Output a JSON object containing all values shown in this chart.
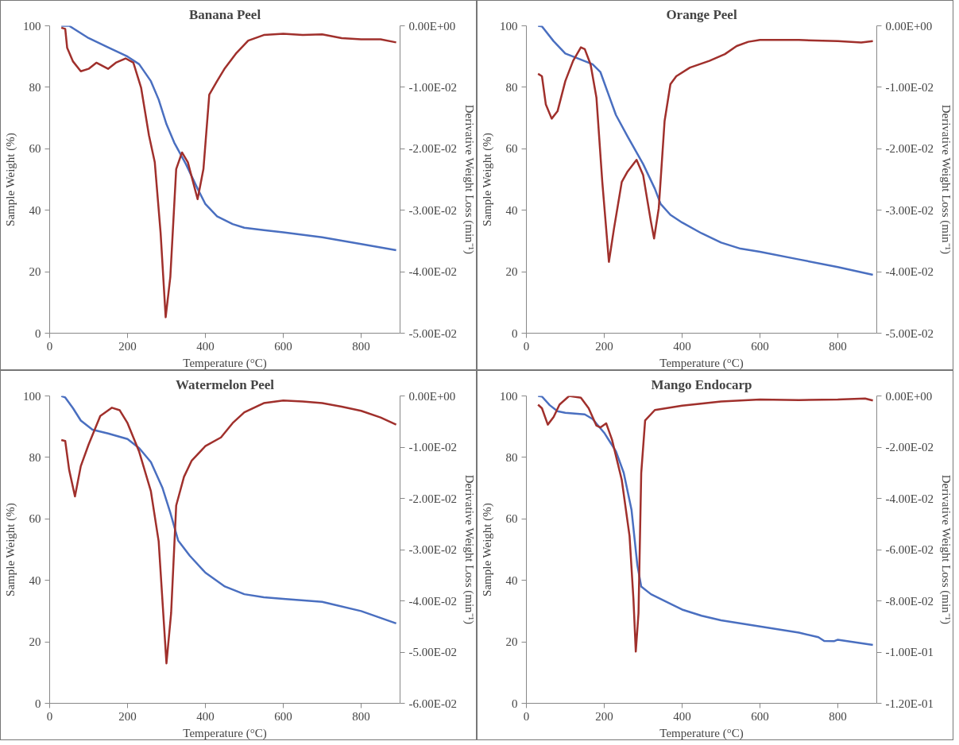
{
  "chart_data": [
    {
      "type": "line",
      "title": "Banana Peel",
      "xlabel": "Temperature (°C)",
      "ylabel": "Sample Weight (%)",
      "y2label": "Derivative Weight Loss (min⁻¹)",
      "xlim": [
        0,
        900
      ],
      "xticks": [
        0,
        200,
        400,
        600,
        800
      ],
      "ylim": [
        0,
        100
      ],
      "yticks": [
        0,
        20,
        40,
        60,
        80,
        100
      ],
      "y2lim": [
        -0.05,
        0
      ],
      "y2ticks": [
        {
          "value": 0,
          "label": "0.00E+00"
        },
        {
          "value": -0.01,
          "label": "-1.00E-02"
        },
        {
          "value": -0.02,
          "label": "-2.00E-02"
        },
        {
          "value": -0.03,
          "label": "-3.00E-02"
        },
        {
          "value": -0.04,
          "label": "-4.00E-02"
        },
        {
          "value": -0.05,
          "label": "-5.00E-02"
        }
      ],
      "grid": false,
      "series": [
        {
          "color": "#4a6fc0",
          "x": [
            30,
            50,
            100,
            150,
            200,
            230,
            260,
            280,
            300,
            320,
            350,
            380,
            400,
            430,
            470,
            500,
            550,
            600,
            700,
            800,
            890
          ],
          "values": [
            100,
            100,
            96,
            93,
            90,
            87.5,
            82,
            76,
            68,
            62,
            55,
            47,
            42,
            38,
            35.5,
            34.3,
            33.5,
            32.8,
            31.2,
            29,
            27
          ]
        },
        {
          "color": "#a0302c",
          "axis": "y2",
          "x": [
            30,
            40,
            45,
            60,
            80,
            100,
            120,
            150,
            170,
            195,
            215,
            235,
            255,
            270,
            285,
            298,
            310,
            325,
            340,
            355,
            380,
            395,
            410,
            430,
            450,
            480,
            510,
            550,
            600,
            650,
            700,
            750,
            800,
            850,
            890
          ],
          "values": [
            -0.0003,
            -0.0005,
            -0.0036,
            -0.0058,
            -0.0074,
            -0.007,
            -0.006,
            -0.007,
            -0.006,
            -0.0053,
            -0.006,
            -0.0101,
            -0.0178,
            -0.0222,
            -0.0337,
            -0.0474,
            -0.0408,
            -0.0233,
            -0.0206,
            -0.0222,
            -0.0282,
            -0.0233,
            -0.0112,
            -0.009,
            -0.0069,
            -0.0044,
            -0.0024,
            -0.0015,
            -0.0013,
            -0.0015,
            -0.0014,
            -0.002,
            -0.0022,
            -0.0022,
            -0.0027
          ]
        }
      ]
    },
    {
      "type": "line",
      "title": "Orange Peel",
      "xlabel": "Temperature (°C)",
      "ylabel": "Sample Weight (%)",
      "y2label": "Derivative Weight Loss (min⁻¹)",
      "xlim": [
        0,
        900
      ],
      "xticks": [
        0,
        200,
        400,
        600,
        800
      ],
      "ylim": [
        0,
        100
      ],
      "yticks": [
        0,
        20,
        40,
        60,
        80,
        100
      ],
      "y2lim": [
        -0.05,
        0
      ],
      "y2ticks": [
        {
          "value": 0,
          "label": "0.00E+00"
        },
        {
          "value": -0.01,
          "label": "-1.00E-02"
        },
        {
          "value": -0.02,
          "label": "-2.00E-02"
        },
        {
          "value": -0.03,
          "label": "-3.00E-02"
        },
        {
          "value": -0.04,
          "label": "-4.00E-02"
        },
        {
          "value": -0.05,
          "label": "-5.00E-02"
        }
      ],
      "grid": false,
      "series": [
        {
          "color": "#4a6fc0",
          "x": [
            30,
            40,
            70,
            100,
            130,
            170,
            190,
            210,
            230,
            260,
            300,
            330,
            345,
            370,
            400,
            450,
            500,
            550,
            600,
            700,
            800,
            890
          ],
          "values": [
            100,
            99.8,
            95,
            91,
            89.5,
            87.5,
            85,
            78,
            71,
            64,
            55,
            47,
            42,
            38.5,
            36,
            32.5,
            29.5,
            27.5,
            26.5,
            24,
            21.5,
            19
          ]
        },
        {
          "color": "#a0302c",
          "axis": "y2",
          "x": [
            30,
            40,
            50,
            65,
            80,
            100,
            120,
            140,
            150,
            165,
            180,
            195,
            212,
            225,
            245,
            260,
            283,
            300,
            320,
            328,
            340,
            355,
            370,
            385,
            420,
            470,
            510,
            540,
            570,
            600,
            700,
            800,
            860,
            890
          ],
          "values": [
            -0.0078,
            -0.0082,
            -0.0128,
            -0.0151,
            -0.0139,
            -0.009,
            -0.0057,
            -0.0035,
            -0.0038,
            -0.0063,
            -0.0117,
            -0.0254,
            -0.0384,
            -0.033,
            -0.0254,
            -0.0237,
            -0.0218,
            -0.0243,
            -0.0319,
            -0.0346,
            -0.0297,
            -0.0155,
            -0.0095,
            -0.0082,
            -0.0068,
            -0.0057,
            -0.0046,
            -0.0033,
            -0.0026,
            -0.0023,
            -0.0023,
            -0.0025,
            -0.0027,
            -0.0025
          ]
        }
      ]
    },
    {
      "type": "line",
      "title": "Watermelon Peel",
      "xlabel": "Temperature (°C)",
      "ylabel": "Sample Weight (%)",
      "y2label": "Derivative Weight Loss (min⁻¹)",
      "xlim": [
        0,
        900
      ],
      "xticks": [
        0,
        200,
        400,
        600,
        800
      ],
      "ylim": [
        0,
        100
      ],
      "yticks": [
        0,
        20,
        40,
        60,
        80,
        100
      ],
      "y2lim": [
        -0.06,
        0
      ],
      "y2ticks": [
        {
          "value": 0,
          "label": "0.00E+00"
        },
        {
          "value": -0.01,
          "label": "-1.00E-02"
        },
        {
          "value": -0.02,
          "label": "-2.00E-02"
        },
        {
          "value": -0.03,
          "label": "-3.00E-02"
        },
        {
          "value": -0.04,
          "label": "-4.00E-02"
        },
        {
          "value": -0.05,
          "label": "-5.00E-02"
        },
        {
          "value": -0.06,
          "label": "-6.00E-02"
        }
      ],
      "grid": false,
      "series": [
        {
          "color": "#4a6fc0",
          "x": [
            30,
            40,
            60,
            80,
            110,
            150,
            200,
            230,
            260,
            290,
            310,
            330,
            360,
            400,
            450,
            500,
            550,
            600,
            700,
            800,
            890
          ],
          "values": [
            100,
            99.5,
            96,
            92,
            89,
            87.8,
            86,
            83,
            78.5,
            70,
            62,
            53,
            48,
            42.5,
            38,
            35.5,
            34.5,
            34,
            33,
            30,
            26
          ]
        },
        {
          "color": "#a0302c",
          "axis": "y2",
          "x": [
            30,
            40,
            50,
            65,
            80,
            100,
            130,
            160,
            180,
            200,
            230,
            260,
            280,
            300,
            312,
            325,
            345,
            365,
            400,
            440,
            470,
            500,
            550,
            600,
            650,
            700,
            750,
            800,
            850,
            890
          ],
          "values": [
            -0.0086,
            -0.0088,
            -0.0144,
            -0.0196,
            -0.0137,
            -0.0095,
            -0.0039,
            -0.0023,
            -0.0028,
            -0.0053,
            -0.0109,
            -0.0186,
            -0.0284,
            -0.0522,
            -0.0424,
            -0.0214,
            -0.0158,
            -0.0126,
            -0.0098,
            -0.0081,
            -0.0053,
            -0.0032,
            -0.0014,
            -0.0009,
            -0.0011,
            -0.0014,
            -0.0021,
            -0.0029,
            -0.0042,
            -0.0056
          ]
        }
      ]
    },
    {
      "type": "line",
      "title": "Mango Endocarp",
      "xlabel": "Temperature (°C)",
      "ylabel": "Sample Weight (%)",
      "y2label": "Derivative Weight Loss (min⁻¹)",
      "xlim": [
        0,
        900
      ],
      "xticks": [
        0,
        200,
        400,
        600,
        800
      ],
      "ylim": [
        0,
        100
      ],
      "yticks": [
        0,
        20,
        40,
        60,
        80,
        100
      ],
      "y2lim": [
        -0.12,
        0
      ],
      "y2ticks": [
        {
          "value": 0,
          "label": "0.00E+00"
        },
        {
          "value": -0.02,
          "label": "-2.00E-02"
        },
        {
          "value": -0.04,
          "label": "-4.00E-02"
        },
        {
          "value": -0.06,
          "label": "-6.00E-02"
        },
        {
          "value": -0.08,
          "label": "-8.00E-02"
        },
        {
          "value": -0.1,
          "label": "-1.00E-01"
        },
        {
          "value": -0.12,
          "label": "-1.20E-01"
        }
      ],
      "grid": false,
      "series": [
        {
          "color": "#4a6fc0",
          "x": [
            30,
            40,
            60,
            80,
            100,
            150,
            170,
            200,
            230,
            250,
            270,
            285,
            295,
            320,
            400,
            450,
            500,
            600,
            700,
            750,
            765,
            790,
            800,
            890
          ],
          "values": [
            100,
            99.8,
            97,
            95,
            94.5,
            94,
            92.5,
            88,
            82,
            75,
            63,
            45,
            38,
            35.5,
            30.5,
            28.5,
            27,
            25,
            23,
            21.5,
            20.3,
            20.2,
            20.7,
            19
          ]
        },
        {
          "color": "#a0302c",
          "axis": "y2",
          "x": [
            30,
            40,
            55,
            70,
            85,
            110,
            140,
            160,
            180,
            190,
            205,
            220,
            245,
            265,
            275,
            281,
            288,
            295,
            305,
            330,
            400,
            500,
            600,
            700,
            800,
            870,
            890
          ],
          "values": [
            -0.0034,
            -0.0048,
            -0.0112,
            -0.0082,
            -0.0034,
            0,
            -0.0007,
            -0.0048,
            -0.0116,
            -0.0123,
            -0.0107,
            -0.0171,
            -0.0328,
            -0.0547,
            -0.0793,
            -0.0998,
            -0.0848,
            -0.0301,
            -0.0096,
            -0.0055,
            -0.0038,
            -0.0022,
            -0.0014,
            -0.0016,
            -0.0014,
            -0.001,
            -0.0018
          ]
        }
      ]
    }
  ]
}
